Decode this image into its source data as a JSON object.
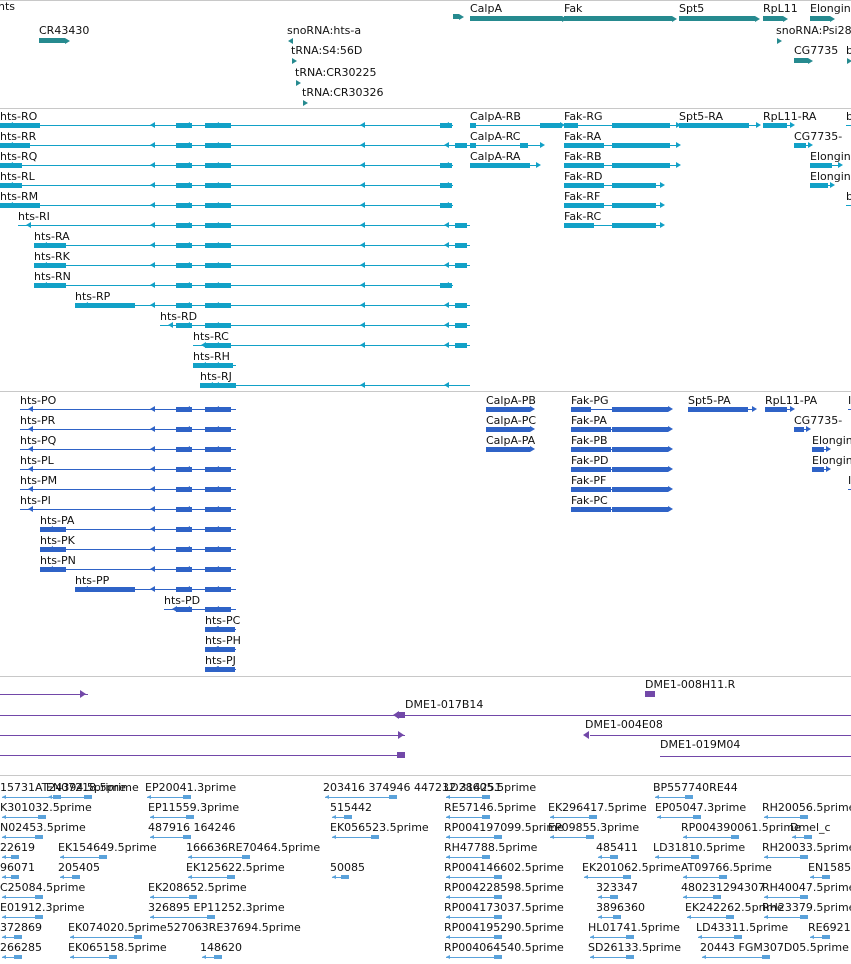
{
  "colors": {
    "gene": "#268a8f",
    "transcript": "#12a1c7",
    "protein": "#2f63c7",
    "clone": "#7248a8",
    "est": "#5aa2db",
    "separator": "#c8c8c8"
  },
  "tracks": {
    "gene": {
      "features": [
        {
          "label": "hts",
          "strand": "-"
        },
        {
          "label": "CalpA",
          "strand": "+"
        },
        {
          "label": "Fak",
          "strand": "+"
        },
        {
          "label": "Spt5",
          "strand": "+"
        },
        {
          "label": "RpL11",
          "strand": "+"
        },
        {
          "label": "Elongin",
          "strand": "+"
        },
        {
          "label": "CR43430",
          "strand": "+"
        },
        {
          "label": "snoRNA:hts-a",
          "strand": "-"
        },
        {
          "label": "snoRNA:Psi28",
          "strand": "+"
        },
        {
          "label": "tRNA:S4:56D",
          "strand": "+"
        },
        {
          "label": "tRNA:CR30225",
          "strand": "+"
        },
        {
          "label": "tRNA:CR30326",
          "strand": "+"
        },
        {
          "label": "CG7735",
          "strand": "+"
        },
        {
          "label": "b",
          "strand": "+"
        }
      ]
    },
    "transcript": {
      "features": [
        {
          "label": "hts-RO",
          "strand": "-"
        },
        {
          "label": "hts-RR",
          "strand": "-"
        },
        {
          "label": "hts-RQ",
          "strand": "-"
        },
        {
          "label": "hts-RL",
          "strand": "-"
        },
        {
          "label": "hts-RM",
          "strand": "-"
        },
        {
          "label": "hts-RI",
          "strand": "-"
        },
        {
          "label": "hts-RA",
          "strand": "-"
        },
        {
          "label": "hts-RK",
          "strand": "-"
        },
        {
          "label": "hts-RN",
          "strand": "-"
        },
        {
          "label": "hts-RP",
          "strand": "-"
        },
        {
          "label": "hts-RD",
          "strand": "-"
        },
        {
          "label": "hts-RC",
          "strand": "-"
        },
        {
          "label": "hts-RH",
          "strand": "-"
        },
        {
          "label": "hts-RJ",
          "strand": "-"
        },
        {
          "label": "CalpA-RB",
          "strand": "+"
        },
        {
          "label": "CalpA-RC",
          "strand": "+"
        },
        {
          "label": "CalpA-RA",
          "strand": "+"
        },
        {
          "label": "Fak-RG",
          "strand": "+"
        },
        {
          "label": "Fak-RA",
          "strand": "+"
        },
        {
          "label": "Fak-RB",
          "strand": "+"
        },
        {
          "label": "Fak-RD",
          "strand": "+"
        },
        {
          "label": "Fak-RF",
          "strand": "+"
        },
        {
          "label": "Fak-RC",
          "strand": "+"
        },
        {
          "label": "Spt5-RA",
          "strand": "+"
        },
        {
          "label": "RpL11-RA",
          "strand": "+"
        },
        {
          "label": "CG7735-",
          "strand": "+"
        },
        {
          "label": "Elongin",
          "strand": "+"
        },
        {
          "label": "Elongin",
          "strand": "+"
        },
        {
          "label": "b",
          "strand": "+"
        },
        {
          "label": "b",
          "strand": "+"
        }
      ]
    },
    "protein": {
      "features": [
        {
          "label": "hts-PO",
          "strand": "-"
        },
        {
          "label": "hts-PR",
          "strand": "-"
        },
        {
          "label": "hts-PQ",
          "strand": "-"
        },
        {
          "label": "hts-PL",
          "strand": "-"
        },
        {
          "label": "hts-PM",
          "strand": "-"
        },
        {
          "label": "hts-PI",
          "strand": "-"
        },
        {
          "label": "hts-PA",
          "strand": "-"
        },
        {
          "label": "hts-PK",
          "strand": "-"
        },
        {
          "label": "hts-PN",
          "strand": "-"
        },
        {
          "label": "hts-PP",
          "strand": "-"
        },
        {
          "label": "hts-PD",
          "strand": "-"
        },
        {
          "label": "hts-PC",
          "strand": "-"
        },
        {
          "label": "hts-PH",
          "strand": "-"
        },
        {
          "label": "hts-PJ",
          "strand": "-"
        },
        {
          "label": "CalpA-PB",
          "strand": "+"
        },
        {
          "label": "CalpA-PC",
          "strand": "+"
        },
        {
          "label": "CalpA-PA",
          "strand": "+"
        },
        {
          "label": "Fak-PG",
          "strand": "+"
        },
        {
          "label": "Fak-PA",
          "strand": "+"
        },
        {
          "label": "Fak-PB",
          "strand": "+"
        },
        {
          "label": "Fak-PD",
          "strand": "+"
        },
        {
          "label": "Fak-PF",
          "strand": "+"
        },
        {
          "label": "Fak-PC",
          "strand": "+"
        },
        {
          "label": "Spt5-PA",
          "strand": "+"
        },
        {
          "label": "RpL11-PA",
          "strand": "+"
        },
        {
          "label": "CG7735-",
          "strand": "+"
        },
        {
          "label": "Elongin",
          "strand": "+"
        },
        {
          "label": "Elongin",
          "strand": "+"
        },
        {
          "label": "I",
          "strand": "+"
        },
        {
          "label": "I",
          "strand": "+"
        }
      ]
    },
    "clone": {
      "features": [
        {
          "label": "DME1-008H11.R",
          "strand": "+"
        },
        {
          "label": "DME1-017B14",
          "strand": "-"
        },
        {
          "label": "DME1-004E08",
          "strand": "-"
        },
        {
          "label": "DME1-019M04",
          "strand": "+"
        }
      ]
    },
    "est": {
      "rows": [
        [
          "15731AT24394.5prime",
          "EN07218.5prime",
          "EP20041.3prime",
          "203416 374946 447232 314251",
          "LD28605.5prime",
          "BP557740RE44"
        ],
        [
          "K301032.5prime",
          "EP11559.3prime",
          "515442",
          "RE57146.5prime",
          "EK296417.5prime",
          "EP05047.3prime",
          "RH20056.5prime"
        ],
        [
          "N02453.5prime",
          "487916 164246",
          "EK056523.5prime",
          "RP004197099.5prime",
          "EP09855.3prime",
          "RP004390061.5prime",
          "Dmel_c"
        ],
        [
          "22619",
          "EK154649.5prime",
          "166636RE70464.5prime",
          "RH47788.5prime",
          "485411",
          "LD31810.5prime",
          "RH20033.5prime"
        ],
        [
          "96071",
          "205405",
          "EK125622.5prime",
          "50085",
          "RP004146602.5prime",
          "EK201062.5prime",
          "AT09766.5prime",
          "EN1585"
        ],
        [
          "C25084.5prime",
          "EK208652.5prime",
          "RP004228598.5prime",
          "323347",
          "480231294307",
          "RH40047.5prime"
        ],
        [
          "E01912.3prime",
          "326895 EP11252.3prime",
          "RP004173037.5prime",
          "3896360",
          "EK242262.5prime",
          "RH23379.5prime"
        ],
        [
          "372869",
          "EK074020.5prime527063RE37694.5prime",
          "RP004195290.5prime",
          "HL01741.5prime",
          "LD43311.5prime",
          "RE6921"
        ],
        [
          "266285",
          "EK065158.5prime",
          "148620",
          "RP004064540.5prime",
          "SD26133.5prime",
          "20443 FGM307D05.5prime"
        ]
      ]
    }
  }
}
